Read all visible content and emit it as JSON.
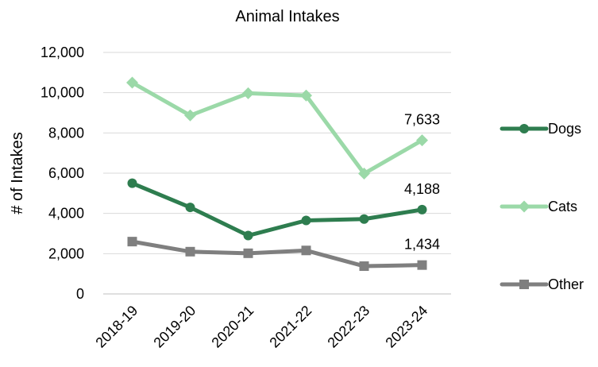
{
  "chart_data": {
    "type": "line",
    "title": "Animal Intakes",
    "xlabel": "",
    "ylabel": "# of Intakes",
    "categories": [
      "2018-19",
      "2019-20",
      "2020-21",
      "2021-22",
      "2022-23",
      "2023-24"
    ],
    "ylim": [
      0,
      12000
    ],
    "yticks": [
      0,
      2000,
      4000,
      6000,
      8000,
      10000,
      12000
    ],
    "ytick_labels": [
      "0",
      "2,000",
      "4,000",
      "6,000",
      "8,000",
      "10,000",
      "12,000"
    ],
    "grid": true,
    "legend_position": "right",
    "series": [
      {
        "name": "Dogs",
        "values": [
          5500,
          4300,
          2900,
          3650,
          3720,
          4188
        ],
        "color": "#2E7D4F",
        "marker": "circle",
        "end_label": "4,188"
      },
      {
        "name": "Cats",
        "values": [
          10500,
          8870,
          9970,
          9860,
          5980,
          7633
        ],
        "color": "#9BD9A8",
        "marker": "diamond",
        "end_label": "7,633"
      },
      {
        "name": "Other",
        "values": [
          2600,
          2100,
          2020,
          2160,
          1380,
          1434
        ],
        "color": "#7F7F7F",
        "marker": "square",
        "end_label": "1,434"
      }
    ]
  }
}
